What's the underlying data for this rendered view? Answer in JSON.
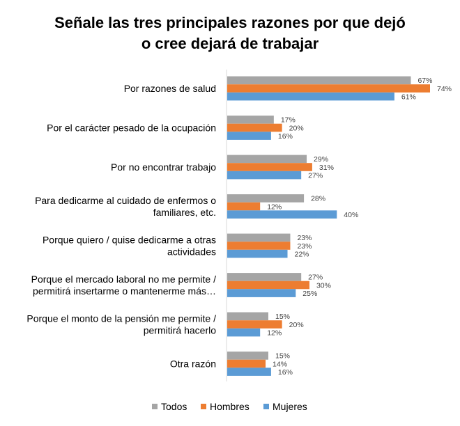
{
  "chart_data": {
    "type": "bar",
    "orientation": "horizontal",
    "title": [
      "Señale las tres principales razones por que dejó",
      "o cree dejará de trabajar"
    ],
    "categories": [
      [
        "Por razones de salud"
      ],
      [
        "Por el carácter pesado de la ocupación"
      ],
      [
        "Por no encontrar trabajo"
      ],
      [
        "Para dedicarme al cuidado de enfermos o",
        "familiares, etc."
      ],
      [
        "Porque quiero / quise dedicarme a otras",
        "actividades"
      ],
      [
        "Porque el mercado laboral no me permite /",
        "permitirá insertarme o mantenerme más…"
      ],
      [
        "Porque el monto de la pensión me permite /",
        "permitirá hacerlo"
      ],
      [
        "Otra razón"
      ]
    ],
    "series": [
      {
        "name": "Todos",
        "color": "#A5A5A5",
        "values": [
          67,
          17,
          29,
          28,
          23,
          27,
          15,
          15
        ]
      },
      {
        "name": "Hombres",
        "color": "#ED7D31",
        "values": [
          74,
          20,
          31,
          12,
          23,
          30,
          20,
          14
        ]
      },
      {
        "name": "Mujeres",
        "color": "#5B9BD5",
        "values": [
          61,
          16,
          27,
          40,
          22,
          25,
          12,
          16
        ]
      }
    ],
    "value_suffix": "%",
    "xlim": [
      0,
      80
    ],
    "grid": false,
    "legend_position": "bottom"
  }
}
